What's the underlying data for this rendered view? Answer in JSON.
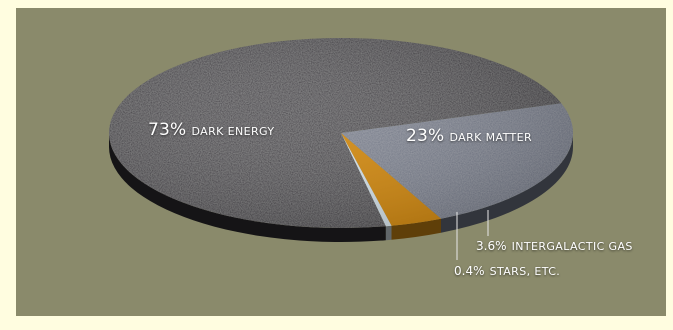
{
  "chart_data": {
    "type": "pie",
    "title": "",
    "slices": [
      {
        "label": "DARK ENERGY",
        "value": 73,
        "value_text": "73%",
        "color": "#2e2c31"
      },
      {
        "label": "DARK MATTER",
        "value": 23,
        "value_text": "23%",
        "color": "#6f7686"
      },
      {
        "label": "INTERGALACTIC GAS",
        "value": 3.6,
        "value_text": "3.6%",
        "color": "#d48c14"
      },
      {
        "label": "STARS, ETC.",
        "value": 0.4,
        "value_text": "0.4%",
        "color": "#d7e4ec"
      }
    ],
    "style": "3d-tilted",
    "legend": "none"
  },
  "colors": {
    "background": "#8a8a6b",
    "outer": "#fffde0",
    "label_text": "#ffffff"
  }
}
